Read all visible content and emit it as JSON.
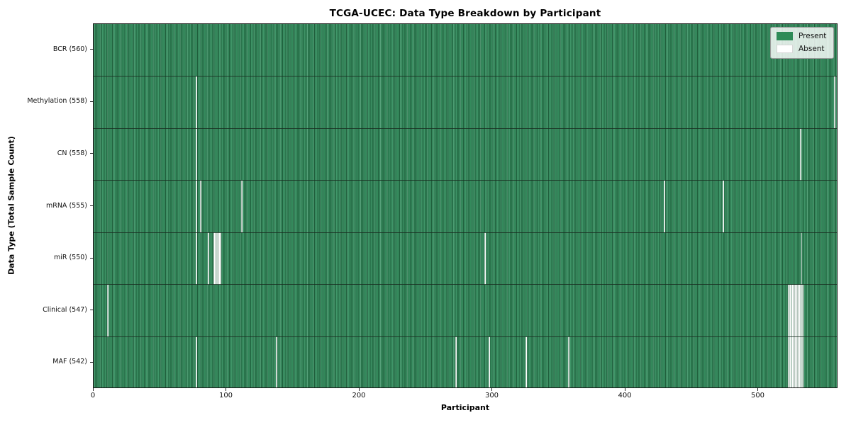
{
  "chart_data": {
    "type": "heatmap",
    "title": "TCGA-UCEC: Data Type Breakdown by Participant",
    "xlabel": "Participant",
    "ylabel": "Data Type (Total Sample Count)",
    "x_ticks": [
      0,
      100,
      200,
      300,
      400,
      500
    ],
    "x_range": [
      0,
      560
    ],
    "total_participants": 560,
    "grid": false,
    "legend_position": "upper right",
    "legend": [
      {
        "label": "Present",
        "color": "#2e8b57"
      },
      {
        "label": "Absent",
        "color": "#ffffff"
      }
    ],
    "rows": [
      {
        "label": "BCR (560)",
        "present_count": 560,
        "absent_participants": []
      },
      {
        "label": "Methylation (558)",
        "present_count": 558,
        "absent_participants": [
          77,
          557
        ]
      },
      {
        "label": "CN (558)",
        "present_count": 558,
        "absent_participants": [
          77,
          531
        ]
      },
      {
        "label": "mRNA (555)",
        "present_count": 555,
        "absent_participants": [
          77,
          80,
          111,
          429,
          473
        ]
      },
      {
        "label": "miR (550)",
        "present_count": 550,
        "absent_participants": [
          77,
          86,
          90,
          91,
          92,
          93,
          94,
          95,
          294,
          532
        ]
      },
      {
        "label": "Clinical (547)",
        "present_count": 547,
        "absent_participants": [
          10,
          522,
          523,
          524,
          525,
          526,
          527,
          528,
          529,
          530,
          531,
          532,
          533
        ]
      },
      {
        "label": "MAF (542)",
        "present_count": 542,
        "absent_participants": [
          77,
          137,
          272,
          297,
          325,
          357,
          522,
          523,
          524,
          525,
          526,
          527,
          528,
          529,
          530,
          531,
          532,
          533
        ]
      }
    ]
  }
}
